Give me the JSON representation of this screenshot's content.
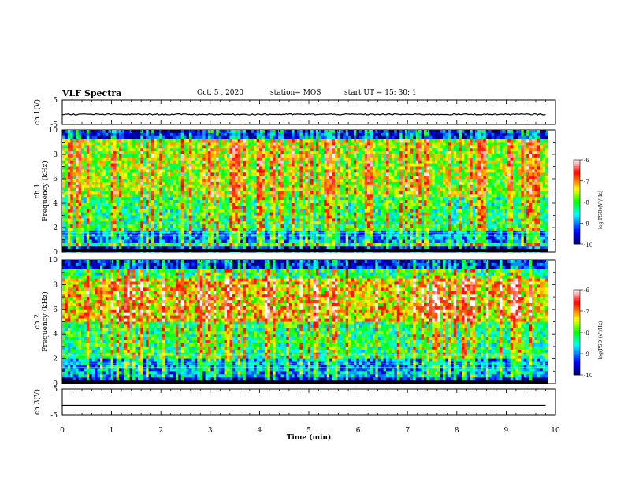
{
  "header": {
    "title": "VLF Spectra",
    "date": "Oct. 5 , 2020",
    "station": "station= MOS",
    "start": "start  UT =   15: 30: 1"
  },
  "chart_data": [
    {
      "type": "line",
      "title": "",
      "ylabel": "ch.1(V)",
      "yticks": [
        "5",
        "-5"
      ],
      "ylim": [
        -5,
        5
      ],
      "xlim": [
        0,
        10
      ],
      "series": [
        {
          "x": [
            0,
            9.8
          ],
          "y": [
            -0.9,
            -0.9
          ]
        }
      ]
    },
    {
      "type": "heatmap",
      "ylabel": "ch.1\nFrequency (kHz)",
      "ylabel_lines": [
        "ch.1",
        "Frequency (kHz)"
      ],
      "yticks": [
        "0",
        "2",
        "4",
        "6",
        "8",
        "10"
      ],
      "ylim": [
        0,
        10
      ],
      "xlim": [
        0,
        10
      ],
      "colorbar": {
        "label": "log(PSD)(V²/Hz)",
        "ticks": [
          "-6",
          "-7",
          "-8",
          "-9",
          "-10"
        ],
        "range": [
          -10,
          -6
        ]
      }
    },
    {
      "type": "heatmap",
      "ylabel": "ch.2\nFrequency (kHz)",
      "ylabel_lines": [
        "ch.2",
        "Frequency (kHz)"
      ],
      "yticks": [
        "0",
        "2",
        "4",
        "6",
        "8",
        "10"
      ],
      "ylim": [
        0,
        10
      ],
      "xlim": [
        0,
        10
      ],
      "colorbar": {
        "label": "log(PSD)(V²/Hz)",
        "ticks": [
          "-6",
          "-7",
          "-8",
          "-9",
          "-10"
        ],
        "range": [
          -10,
          -6
        ]
      }
    },
    {
      "type": "line",
      "ylabel": "ch.3(V)",
      "yticks": [
        "5",
        "-5"
      ],
      "ylim": [
        -5,
        5
      ],
      "xlim": [
        0,
        10
      ],
      "series": [
        {
          "x": [
            0,
            9.8
          ],
          "y": [
            -1.2,
            -1.2
          ]
        }
      ]
    }
  ],
  "xaxis": {
    "label": "Time  (min)",
    "ticks": [
      "0",
      "1",
      "2",
      "3",
      "4",
      "5",
      "6",
      "7",
      "8",
      "9",
      "10"
    ]
  },
  "colors": {
    "spectrogram": [
      "#000066",
      "#0000ff",
      "#00ffff",
      "#00ff00",
      "#ffff00",
      "#ff0000",
      "#ffffff"
    ]
  }
}
